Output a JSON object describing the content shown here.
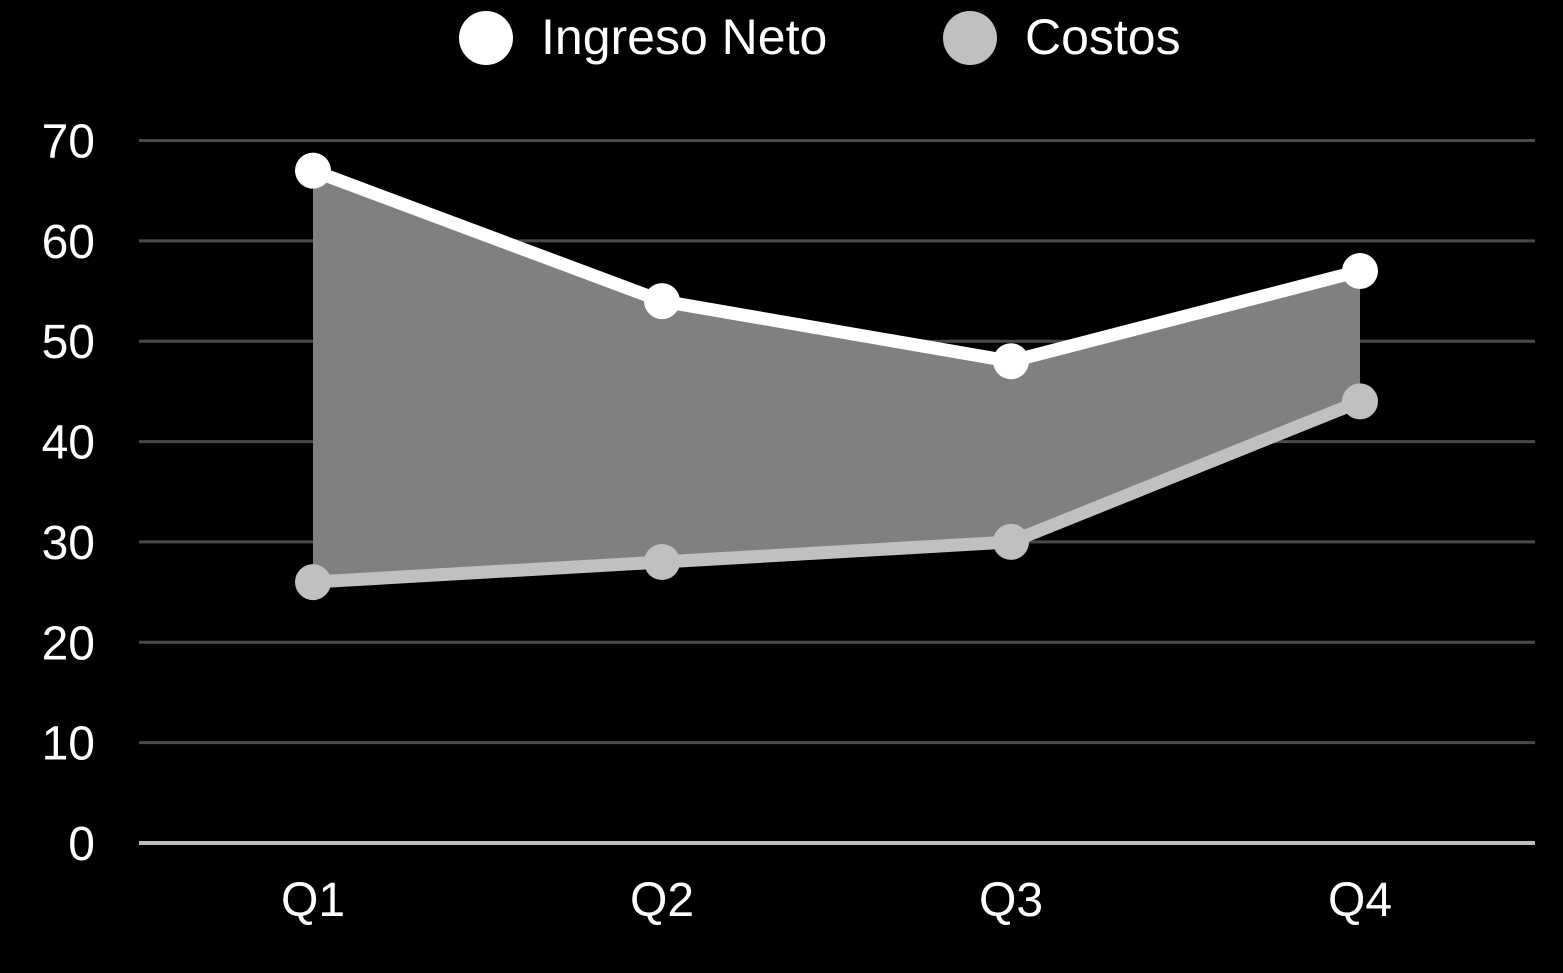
{
  "chart_data": {
    "type": "line",
    "title": "",
    "xlabel": "",
    "ylabel": "",
    "categories": [
      "Q1",
      "Q2",
      "Q3",
      "Q4"
    ],
    "ylim": [
      0,
      70
    ],
    "yticks": [
      0,
      10,
      20,
      30,
      40,
      50,
      60,
      70
    ],
    "grid": true,
    "legend_position": "top-center",
    "shaded_area_between_series": true,
    "series": [
      {
        "name": "Ingreso Neto",
        "values": [
          67,
          54,
          48,
          57
        ],
        "color": "#ffffff"
      },
      {
        "name": "Costos",
        "values": [
          26,
          28,
          30,
          44
        ],
        "color": "#c0c0c0"
      }
    ],
    "colors": {
      "background": "#000000",
      "grid": "#4a4a4a",
      "baseline": "#bdbdbd",
      "area_fill": "#808080",
      "text": "#ffffff"
    }
  }
}
